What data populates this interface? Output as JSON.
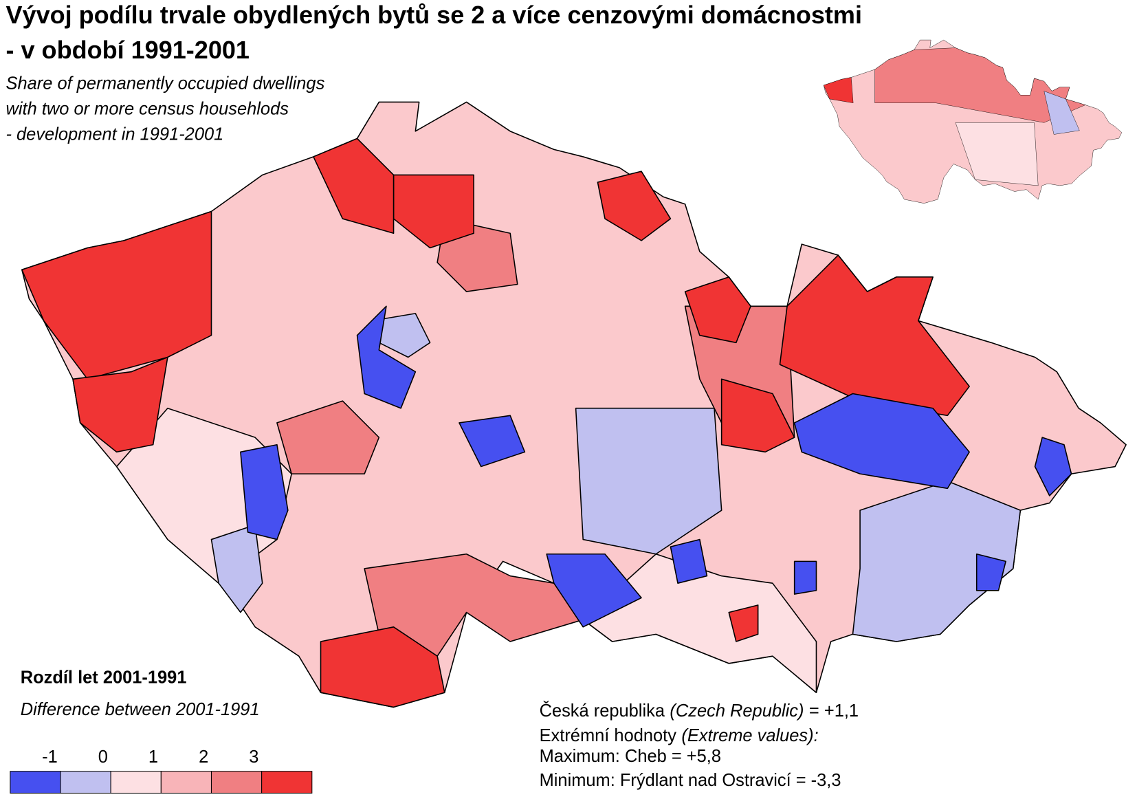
{
  "title": [
    "Vývoj podílu trvale obydlených bytů se 2 a více cenzovými domácnostmi",
    "- v období 1991-2001"
  ],
  "subtitle": [
    "Share of permanently occupied dwellings",
    "with two or more census househlods",
    "- development in 1991-2001"
  ],
  "legend": {
    "title": "Rozdíl let 2001-1991",
    "subtitle": "Difference between 2001-1991",
    "ticks": [
      -1,
      0,
      1,
      2,
      3
    ],
    "colors": [
      "#4650f0",
      "#c0c0f0",
      "#fde0e3",
      "#f8b4b8",
      "#f07f82",
      "#f03434"
    ]
  },
  "notes": [
    {
      "before": "Česká republika",
      "italic": "(Czech Republic)",
      "after": "= +1,1"
    },
    {
      "before": "Extrémní hodnoty",
      "italic": "(Extreme values):"
    },
    {
      "before": "Maximum: Cheb = +5,8"
    },
    {
      "before": "Minimum: Frýdlant nad Ostravicí = -3,3"
    }
  ]
}
